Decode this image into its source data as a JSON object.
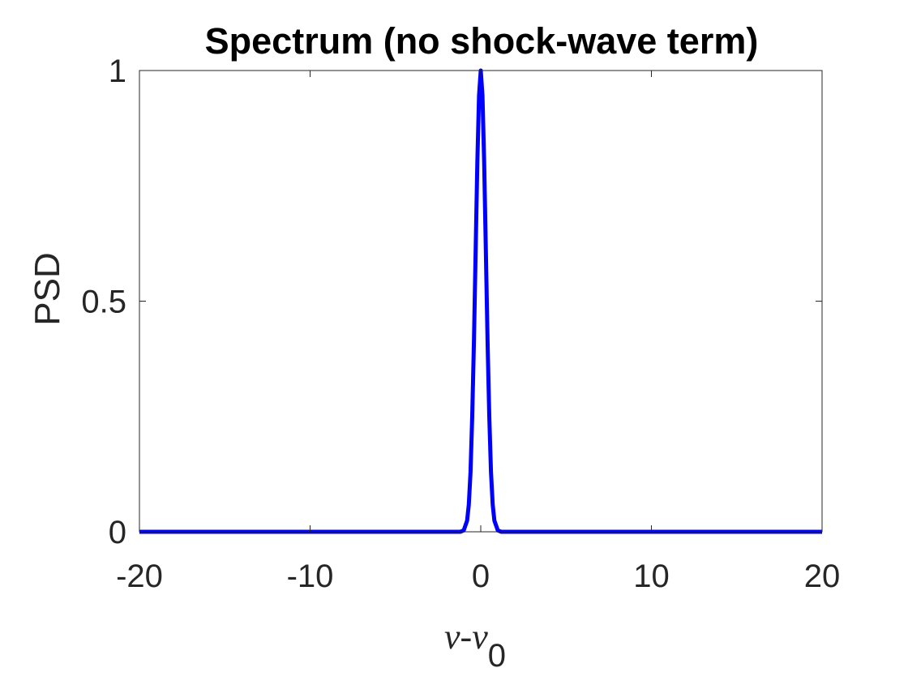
{
  "chart_data": {
    "type": "line",
    "title": "Spectrum (no shock-wave term)",
    "xlabel": "ν-ν0",
    "xlabel_parts": {
      "base": "ν-ν",
      "subscript": "0"
    },
    "ylabel": "PSD",
    "xlim": [
      -20,
      20
    ],
    "ylim": [
      0,
      1
    ],
    "xticks": [
      -20,
      -10,
      0,
      10,
      20
    ],
    "xtick_labels": [
      "-20",
      "-10",
      "0",
      "10",
      "20"
    ],
    "yticks": [
      0,
      0.5,
      1
    ],
    "ytick_labels": [
      "0",
      "0.5",
      "1"
    ],
    "grid": false,
    "box": true,
    "series": [
      {
        "color": "#0000ff",
        "x": [
          -20,
          -10,
          -5,
          -2,
          -1.2,
          -1.0,
          -0.8,
          -0.7,
          -0.6,
          -0.5,
          -0.4,
          -0.3,
          -0.2,
          -0.1,
          0,
          0.1,
          0.2,
          0.3,
          0.4,
          0.5,
          0.6,
          0.7,
          0.8,
          1.0,
          1.2,
          2,
          5,
          10,
          20
        ],
        "y": [
          0,
          0,
          0,
          0,
          0.0,
          0.003,
          0.024,
          0.059,
          0.129,
          0.25,
          0.411,
          0.607,
          0.801,
          0.946,
          1.0,
          0.946,
          0.801,
          0.607,
          0.411,
          0.25,
          0.129,
          0.059,
          0.024,
          0.003,
          0.0,
          0,
          0,
          0,
          0
        ]
      }
    ]
  }
}
